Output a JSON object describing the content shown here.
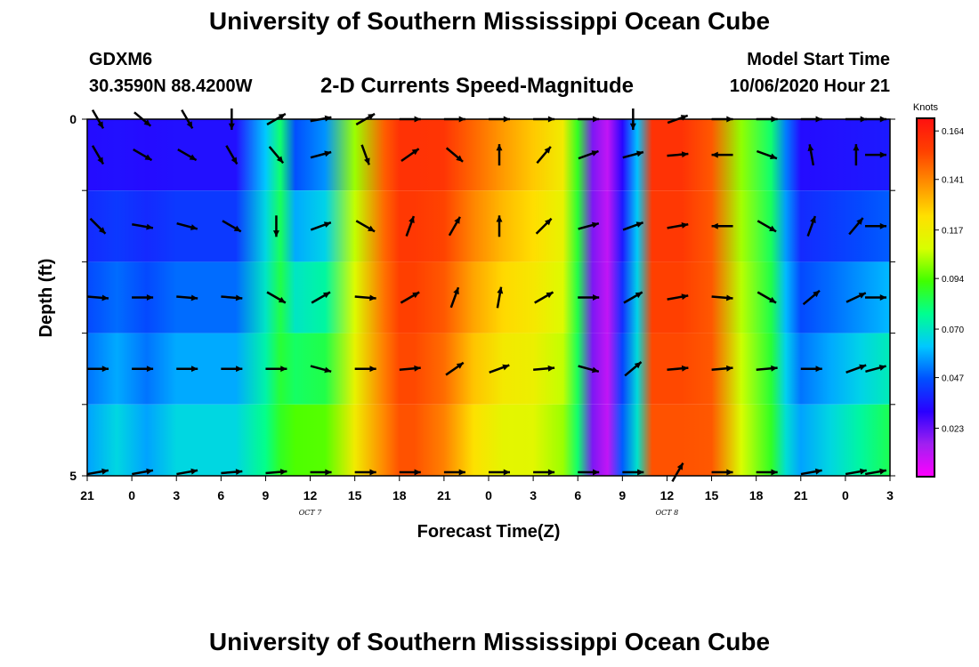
{
  "header": {
    "title": "University of Southern Mississippi Ocean Cube",
    "station_id": "GDXM6",
    "station_coords": "30.3590N 88.4200W",
    "model_start_label": "Model Start Time",
    "model_start_value": "10/06/2020 Hour 21"
  },
  "footer": {
    "title": "University of Southern Mississippi Ocean Cube"
  },
  "colors": {
    "palette": [
      "#ff00ff",
      "#a020f0",
      "#2a00ff",
      "#0050ff",
      "#00c8ff",
      "#00ff90",
      "#40ff00",
      "#d8ff00",
      "#ffe000",
      "#ff9000",
      "#ff4000",
      "#ff1010"
    ],
    "arrow": "#000000",
    "frame": "#000000"
  },
  "chart_data": {
    "type": "heatmap",
    "title": "2-D Currents Speed-Magnitude",
    "xlabel": "Forecast Time(Z)",
    "ylabel": "Depth (ft)",
    "x_range": [
      0,
      54
    ],
    "y_range": [
      0,
      5
    ],
    "x_ticks": [
      "21",
      "0",
      "3",
      "6",
      "9",
      "12",
      "15",
      "18",
      "21",
      "0",
      "3",
      "6",
      "9",
      "12",
      "15",
      "18",
      "21",
      "0",
      "3"
    ],
    "x_tick_hours": [
      0,
      3,
      6,
      9,
      12,
      15,
      18,
      21,
      24,
      27,
      30,
      33,
      36,
      39,
      42,
      45,
      48,
      51,
      54
    ],
    "date_labels": [
      {
        "text": "OCT 7",
        "hour": 15
      },
      {
        "text": "OCT 8",
        "hour": 39
      }
    ],
    "y_ticks": [
      "0",
      "5"
    ],
    "depths": [
      0,
      1,
      2,
      3,
      4,
      5
    ],
    "colorbar": {
      "label": "Knots",
      "min": 0.0,
      "max": 0.17,
      "ticks": [
        0.164,
        0.141,
        0.117,
        0.094,
        0.07,
        0.047,
        0.023
      ],
      "tick_labels": [
        "0.164",
        "0.141",
        "0.117",
        "0.094",
        "0.070",
        "0.047",
        "0.023"
      ]
    },
    "speed_profile": {
      "hours": [
        0,
        2,
        4,
        6,
        8,
        10,
        12,
        13,
        14,
        16,
        18,
        20,
        21,
        22,
        24,
        26,
        28,
        30,
        32,
        33,
        34,
        35,
        36,
        37,
        38,
        40,
        42,
        44,
        46,
        47,
        48,
        50,
        52,
        54
      ],
      "surface": [
        0.03,
        0.03,
        0.03,
        0.03,
        0.03,
        0.03,
        0.06,
        0.08,
        0.04,
        0.05,
        0.1,
        0.15,
        0.16,
        0.16,
        0.16,
        0.15,
        0.14,
        0.13,
        0.12,
        0.09,
        0.02,
        0.01,
        0.03,
        0.06,
        0.16,
        0.16,
        0.15,
        0.1,
        0.08,
        0.05,
        0.03,
        0.03,
        0.03,
        0.03
      ],
      "bottom": [
        0.06,
        0.07,
        0.06,
        0.07,
        0.07,
        0.07,
        0.08,
        0.09,
        0.1,
        0.1,
        0.12,
        0.14,
        0.15,
        0.15,
        0.14,
        0.12,
        0.11,
        0.11,
        0.1,
        0.08,
        0.02,
        0.01,
        0.05,
        0.07,
        0.15,
        0.15,
        0.15,
        0.11,
        0.09,
        0.07,
        0.06,
        0.07,
        0.08,
        0.09
      ]
    },
    "vectors": {
      "hours": [
        0,
        3,
        6,
        9,
        12,
        15,
        18,
        21,
        24,
        27,
        30,
        33,
        36,
        39,
        42,
        45,
        48,
        51,
        54
      ],
      "rows": [
        {
          "depth": 0.0,
          "angles": [
            -60,
            -40,
            -60,
            -90,
            30,
            10,
            30,
            0,
            0,
            0,
            0,
            0,
            -90,
            20,
            0,
            0,
            0,
            0,
            0
          ]
        },
        {
          "depth": 0.5,
          "angles": [
            -60,
            -30,
            -30,
            -60,
            -50,
            15,
            -70,
            35,
            -40,
            90,
            50,
            20,
            15,
            5,
            180,
            -20,
            100,
            90,
            0
          ]
        },
        {
          "depth": 1.5,
          "angles": [
            -45,
            -10,
            -15,
            -30,
            -90,
            20,
            -30,
            70,
            60,
            90,
            45,
            15,
            20,
            10,
            180,
            -30,
            70,
            50,
            0
          ]
        },
        {
          "depth": 2.5,
          "angles": [
            -5,
            0,
            -5,
            -5,
            -30,
            30,
            -5,
            30,
            70,
            80,
            30,
            0,
            30,
            10,
            -5,
            -30,
            40,
            25,
            0
          ]
        },
        {
          "depth": 3.5,
          "angles": [
            0,
            0,
            0,
            0,
            0,
            -15,
            0,
            5,
            35,
            20,
            5,
            -15,
            40,
            5,
            5,
            5,
            0,
            20,
            15
          ]
        },
        {
          "depth": 4.95,
          "angles": [
            10,
            10,
            10,
            5,
            5,
            0,
            0,
            0,
            0,
            0,
            0,
            0,
            0,
            60,
            0,
            0,
            10,
            10,
            10
          ]
        }
      ]
    }
  }
}
